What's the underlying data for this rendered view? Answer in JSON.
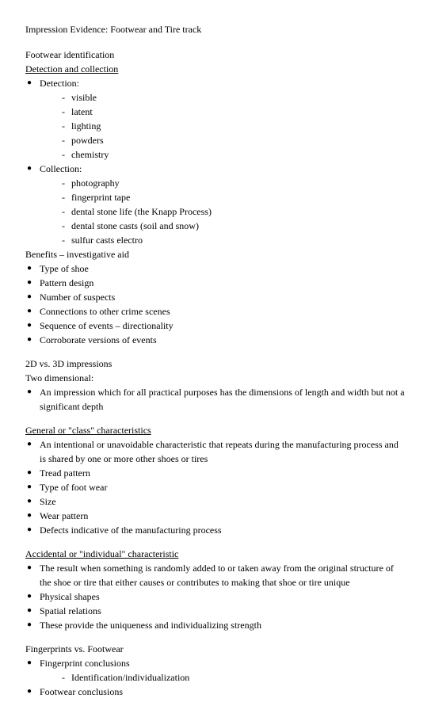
{
  "title": "Impression Evidence: Footwear and Tire track",
  "s1": {
    "h1": "Footwear identification",
    "h2": "Detection and collection",
    "b1": "Detection:",
    "d1": [
      "visible",
      "latent",
      "lighting",
      "powders",
      "chemistry"
    ],
    "b2": "Collection:",
    "d2": [
      "photography",
      "fingerprint tape",
      "dental stone life (the Knapp Process)",
      "dental stone casts (soil and snow)",
      "sulfur casts electro"
    ],
    "h3": "Benefits – investigative aid",
    "b3": [
      "Type of shoe",
      "Pattern design",
      "Number of suspects",
      "Connections to other crime scenes",
      "Sequence of events – directionality",
      "Corroborate versions of events"
    ]
  },
  "s2": {
    "h1": "2D vs. 3D impressions",
    "h2": "Two dimensional:",
    "b1": "An impression which for all practical purposes has the dimensions of length and width but not a significant depth"
  },
  "s3": {
    "h1": "General or \"class\" characteristics",
    "b": [
      "An intentional or unavoidable characteristic that repeats during the manufacturing process and is shared by one or more other shoes or tires",
      "Tread pattern",
      "Type of foot wear",
      "Size",
      "Wear pattern",
      "Defects indicative of the manufacturing process"
    ]
  },
  "s4": {
    "h1": "Accidental or \"individual\" characteristic",
    "b": [
      "The result when something is randomly added to or taken away from the original structure of the shoe or tire that either causes or contributes to making that shoe or tire unique",
      "Physical shapes",
      "Spatial relations",
      "These provide the uniqueness and individualizing strength"
    ]
  },
  "s5": {
    "h1": "Fingerprints vs. Footwear",
    "b1": "Fingerprint conclusions",
    "d1": [
      "Identification/individualization"
    ],
    "b2": "Footwear conclusions"
  }
}
